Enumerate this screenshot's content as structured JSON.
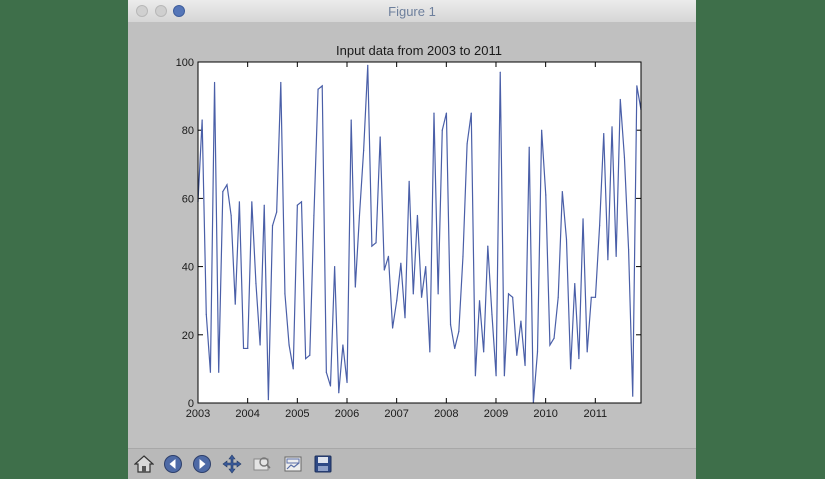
{
  "window": {
    "title": "Figure 1"
  },
  "toolbar": {
    "buttons": [
      {
        "name": "home-button",
        "icon": "home-icon"
      },
      {
        "name": "back-button",
        "icon": "back-arrow-icon"
      },
      {
        "name": "forward-button",
        "icon": "forward-arrow-icon"
      },
      {
        "name": "pan-button",
        "icon": "pan-arrows-icon"
      },
      {
        "name": "zoom-button",
        "icon": "zoom-rect-icon"
      },
      {
        "name": "configure-subplots-button",
        "icon": "subplots-icon"
      },
      {
        "name": "save-button",
        "icon": "save-disk-icon"
      }
    ]
  },
  "colors": {
    "line": "#4a5fa8",
    "axes": "#000000",
    "background": "#c0c0c0"
  },
  "chart_data": {
    "type": "line",
    "title": "Input data from 2003 to 2011",
    "xlabel": "",
    "ylabel": "",
    "xlim": [
      2003.0,
      2011.92
    ],
    "ylim": [
      0,
      100
    ],
    "xticks": [
      "2003",
      "2004",
      "2005",
      "2006",
      "2007",
      "2008",
      "2009",
      "2010",
      "2011"
    ],
    "yticks": [
      "0",
      "20",
      "40",
      "60",
      "80",
      "100"
    ],
    "grid": false,
    "series": [
      {
        "values": [
          59,
          83,
          26,
          9,
          94,
          9,
          62,
          64,
          55,
          29,
          59,
          16,
          16,
          59,
          35,
          17,
          58,
          1,
          52,
          56,
          94,
          32,
          17,
          10,
          58,
          59,
          13,
          14,
          55,
          92,
          93,
          9,
          5,
          40,
          3,
          17,
          6,
          83,
          34,
          55,
          74,
          99,
          46,
          47,
          78,
          39,
          43,
          22,
          30,
          41,
          25,
          65,
          32,
          55,
          31,
          40,
          15,
          85,
          32,
          80,
          85,
          23,
          16,
          21,
          43,
          76,
          85,
          8,
          30,
          15,
          46,
          26,
          8,
          97,
          8,
          32,
          31,
          14,
          24,
          11,
          75,
          0,
          15,
          80,
          61,
          17,
          19,
          31,
          62,
          48,
          10,
          35,
          13,
          54,
          15,
          31,
          31,
          52,
          79,
          42,
          81,
          43,
          89,
          72,
          45,
          2,
          93,
          86
        ]
      }
    ]
  }
}
